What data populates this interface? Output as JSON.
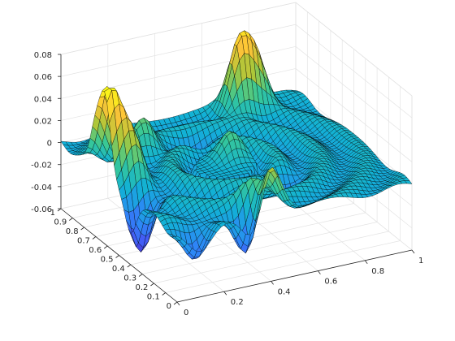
{
  "chart_data": {
    "type": "surface",
    "title": "",
    "xlabel": "",
    "ylabel": "",
    "zlabel": "",
    "xlim": [
      0,
      1
    ],
    "ylim": [
      0,
      1
    ],
    "zlim": [
      -0.06,
      0.08
    ],
    "grid": true,
    "colormap": "parula",
    "edge_color": "#000000",
    "x_ticks": [
      "0",
      "0.2",
      "0.4",
      "0.6",
      "0.8",
      "1"
    ],
    "y_ticks": [
      "0",
      "0.1",
      "0.2",
      "0.3",
      "0.4",
      "0.5",
      "0.6",
      "0.7",
      "0.8",
      "0.9",
      "1"
    ],
    "z_ticks": [
      "-0.06",
      "-0.04",
      "-0.02",
      "0",
      "0.02",
      "0.04",
      "0.06",
      "0.08"
    ],
    "features": [
      {
        "x": 0.02,
        "y": 0.62,
        "z": 0.078
      },
      {
        "x": 0.0,
        "y": 0.7,
        "z": 0.04
      },
      {
        "x": 0.08,
        "y": 0.55,
        "z": 0.035
      },
      {
        "x": 0.72,
        "y": 0.92,
        "z": 0.06
      },
      {
        "x": 0.8,
        "y": 0.95,
        "z": 0.045
      },
      {
        "x": 0.4,
        "y": 0.02,
        "z": 0.05
      },
      {
        "x": 0.36,
        "y": 0.1,
        "z": 0.03
      },
      {
        "x": 0.5,
        "y": 0.55,
        "z": 0.025
      },
      {
        "x": 0.25,
        "y": 0.78,
        "z": 0.025
      },
      {
        "x": 0.33,
        "y": 0.05,
        "z": -0.05
      },
      {
        "x": 0.05,
        "y": 0.4,
        "z": -0.05
      },
      {
        "x": 0.1,
        "y": 0.05,
        "z": -0.03
      },
      {
        "x": 0.6,
        "y": 0.3,
        "z": -0.02
      },
      {
        "x": 0.45,
        "y": 0.75,
        "z": -0.018
      }
    ]
  }
}
